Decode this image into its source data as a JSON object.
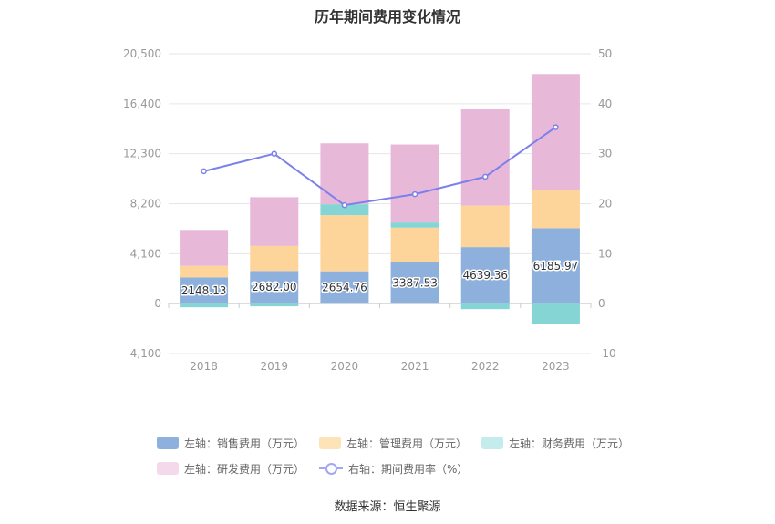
{
  "title": "历年期间费用变化情况",
  "source": "数据来源：恒生聚源",
  "legend": {
    "rows": [
      [
        {
          "label": "左轴：销售费用（万元）",
          "color": "#8eb0dc",
          "kind": "bar"
        },
        {
          "label": "左轴：管理费用（万元）",
          "color": "#fde3b8",
          "kind": "bar"
        },
        {
          "label": "左轴：财务费用（万元）",
          "color": "#c4ecec",
          "kind": "bar"
        }
      ],
      [
        {
          "label": "左轴：研发费用（万元）",
          "color": "#f3d9ea",
          "kind": "bar"
        },
        {
          "label": "右轴：期间费用率（%）",
          "color": "#a3a7f3",
          "kind": "line"
        }
      ]
    ]
  },
  "chart_data": {
    "type": "bar",
    "title": "历年期间费用变化情况",
    "categories": [
      "2018",
      "2019",
      "2020",
      "2021",
      "2022",
      "2023"
    ],
    "y_left": {
      "ticks": [
        "20,500",
        "16,400",
        "12,300",
        "8,200",
        "4,100",
        "0",
        "-4,100"
      ],
      "range": [
        -4100,
        20500
      ]
    },
    "y_right": {
      "ticks": [
        "50",
        "40",
        "30",
        "20",
        "10",
        "0",
        "-10"
      ],
      "range": [
        -10,
        50
      ]
    },
    "series": [
      {
        "name": "左轴：销售费用（万元）",
        "axis": "left",
        "stack": true,
        "color": "#8eb0dc",
        "values": [
          2148.13,
          2682.0,
          2654.76,
          3387.53,
          4639.36,
          6185.97
        ],
        "labels": [
          "2148.13",
          "2682.00",
          "2654.76",
          "3387.53",
          "4639.36",
          "6185.97"
        ]
      },
      {
        "name": "左轴：管理费用（万元）",
        "axis": "left",
        "stack": true,
        "color": "#fdd59b",
        "values": [
          950,
          2050,
          4600,
          2850,
          3400,
          3150
        ]
      },
      {
        "name": "左轴：财务费用（万元）",
        "axis": "left",
        "stack": true,
        "color": "#85d5d5",
        "values": [
          -300,
          -220,
          900,
          420,
          -450,
          -1650
        ]
      },
      {
        "name": "左轴：研发费用（万元）",
        "axis": "left",
        "stack": true,
        "color": "#e8b8d8",
        "values": [
          2950,
          4000,
          5000,
          6400,
          7900,
          9500
        ]
      },
      {
        "name": "右轴：期间费用率（%）",
        "axis": "right",
        "type": "line",
        "color": "#7b80ec",
        "values": [
          26.5,
          30.0,
          19.7,
          21.9,
          25.4,
          35.3
        ]
      }
    ]
  }
}
